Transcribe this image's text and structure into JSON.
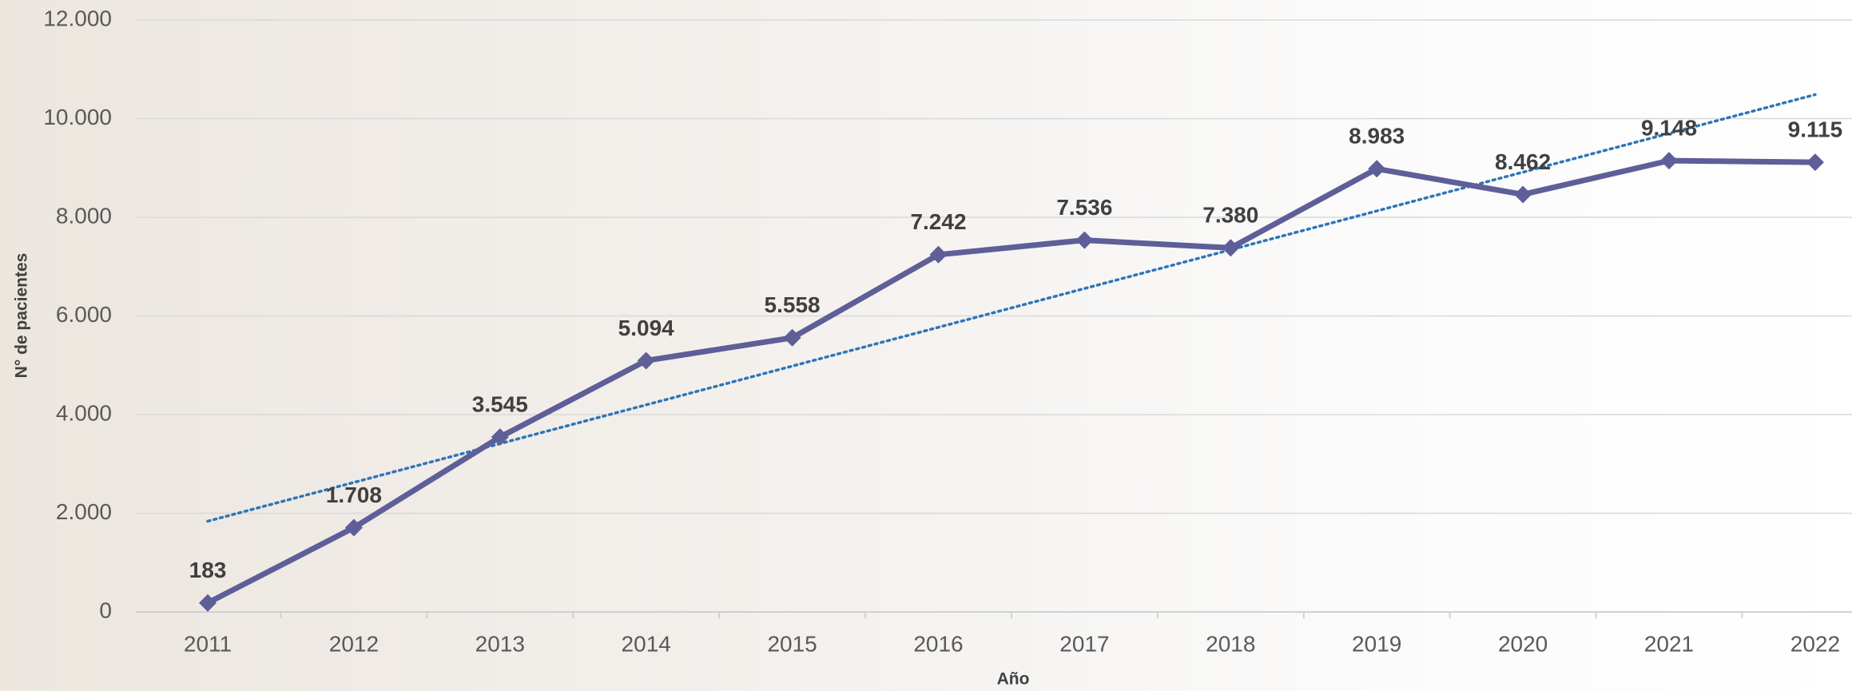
{
  "chart_data": {
    "type": "line",
    "x_label": "Año",
    "y_label": "N° de pacientes",
    "categories": [
      "2011",
      "2012",
      "2013",
      "2014",
      "2015",
      "2016",
      "2017",
      "2018",
      "2019",
      "2020",
      "2021",
      "2022"
    ],
    "series": [
      {
        "color": "#5e5e98",
        "values": [
          183,
          1708,
          3545,
          5094,
          5558,
          7242,
          7536,
          7380,
          8983,
          8462,
          9148,
          9115
        ],
        "value_labels": [
          "183",
          "1.708",
          "3.545",
          "5.094",
          "5.558",
          "7.242",
          "7.536",
          "7.380",
          "8.983",
          "8.462",
          "9.148",
          "9.115"
        ]
      }
    ],
    "trendline": true,
    "trendline_color": "#2e75b6",
    "ylim": [
      0,
      12000
    ],
    "yticks": [
      0,
      {
        "value": 2000,
        "label": "2.000"
      },
      {
        "value": 4000,
        "label": "4.000"
      },
      {
        "value": 6000,
        "label": "6.000"
      },
      {
        "value": 8000,
        "label": "8.000"
      },
      {
        "value": 10000,
        "label": "10.000"
      },
      {
        "value": 12000,
        "label": "12.000"
      }
    ],
    "grid": true
  }
}
